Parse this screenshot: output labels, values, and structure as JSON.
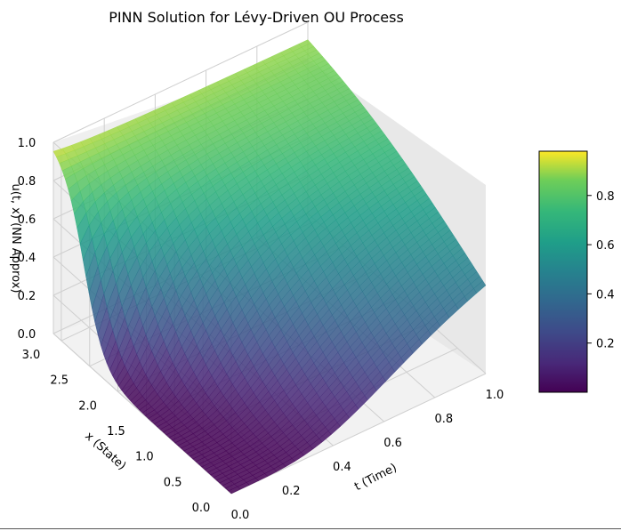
{
  "chart_data": {
    "type": "surface",
    "title": "PINN Solution for Lévy-Driven OU Process",
    "xlabel": "t (Time)",
    "ylabel": "x (State)",
    "zlabel": "u(t, x) (NN Approx)",
    "t_range": [
      0,
      1
    ],
    "x_range": [
      0,
      3.14
    ],
    "z_range": [
      0,
      1
    ],
    "t_ticks": [
      "0.0",
      "0.2",
      "0.4",
      "0.6",
      "0.8",
      "1.0"
    ],
    "x_ticks": [
      "0.0",
      "0.5",
      "1.0",
      "1.5",
      "2.0",
      "2.5",
      "3.0"
    ],
    "z_ticks": [
      "0.0",
      "0.2",
      "0.4",
      "0.6",
      "0.8",
      "1.0"
    ],
    "surface_profile_t0": {
      "x": [
        0.0,
        0.5,
        1.0,
        1.5,
        2.0,
        2.3,
        2.6,
        2.9,
        3.14
      ],
      "u": [
        0.0,
        0.0,
        0.02,
        0.0,
        0.0,
        0.1,
        0.6,
        0.95,
        1.0
      ]
    },
    "surface_profile_t1": {
      "x": [
        0.0,
        0.5,
        1.0,
        1.5,
        2.0,
        2.5,
        3.14
      ],
      "u": [
        0.6,
        0.68,
        0.76,
        0.84,
        0.9,
        0.95,
        1.0
      ]
    },
    "colormap": "viridis",
    "colorbar": {
      "ticks": [
        "0.2",
        "0.4",
        "0.6",
        "0.8"
      ],
      "range": [
        0.0,
        1.0
      ]
    },
    "grid": true
  }
}
